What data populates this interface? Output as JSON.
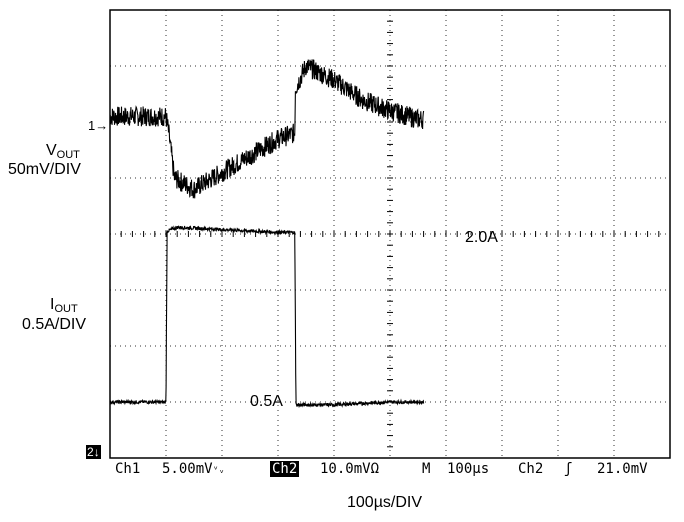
{
  "chart_data": {
    "type": "line",
    "title": "",
    "grid": true,
    "x_divisions": 10,
    "y_divisions": 8,
    "xlabel": "100µs/DIV",
    "channels": [
      {
        "name": "VOUT",
        "label_main": "V",
        "label_sub": "OUT",
        "scale": "50mV/DIV",
        "marker": "1",
        "marker_arrow": "→",
        "unit": "div",
        "x": [
          0,
          1.0,
          1.05,
          1.15,
          1.5,
          2.0,
          2.5,
          3.0,
          3.3,
          3.31,
          3.5,
          4.0,
          4.5,
          5.0,
          5.5,
          5.6
        ],
        "y": [
          6.1,
          6.1,
          5.8,
          5.0,
          4.8,
          5.1,
          5.4,
          5.7,
          5.8,
          6.6,
          7.0,
          6.75,
          6.4,
          6.2,
          6.05,
          6.05
        ],
        "noise_div": 0.18
      },
      {
        "name": "IOUT",
        "label_main": "I",
        "label_sub": "OUT",
        "scale": "0.5A/DIV",
        "marker": "2",
        "marker_arrow": "↓",
        "unit": "div",
        "x": [
          0,
          1.0,
          1.02,
          1.2,
          2.0,
          3.0,
          3.3,
          3.32,
          4.0,
          5.0,
          5.6
        ],
        "y": [
          1.0,
          1.0,
          4.05,
          4.12,
          4.08,
          4.03,
          4.03,
          0.95,
          0.95,
          1.0,
          1.0
        ],
        "noise_div": 0.03
      }
    ],
    "annotations": [
      {
        "text": "2.0A"
      },
      {
        "text": "0.5A"
      }
    ]
  },
  "status_bar": {
    "ch1": "Ch1",
    "ch1_scale": "5.00mV",
    "ch1_coupling": "ᵛᵥ",
    "ch2": "Ch2",
    "ch2_scale": "10.0mV",
    "ch2_coupling": "Ω",
    "timebase_mode": "M",
    "timebase": "100µs",
    "trigger_source": "Ch2",
    "trigger_slope": "ʃ",
    "trigger_level": "21.0mV"
  },
  "colors": {
    "trace": "#000000",
    "grid": "#000000",
    "background": "#ffffff"
  }
}
